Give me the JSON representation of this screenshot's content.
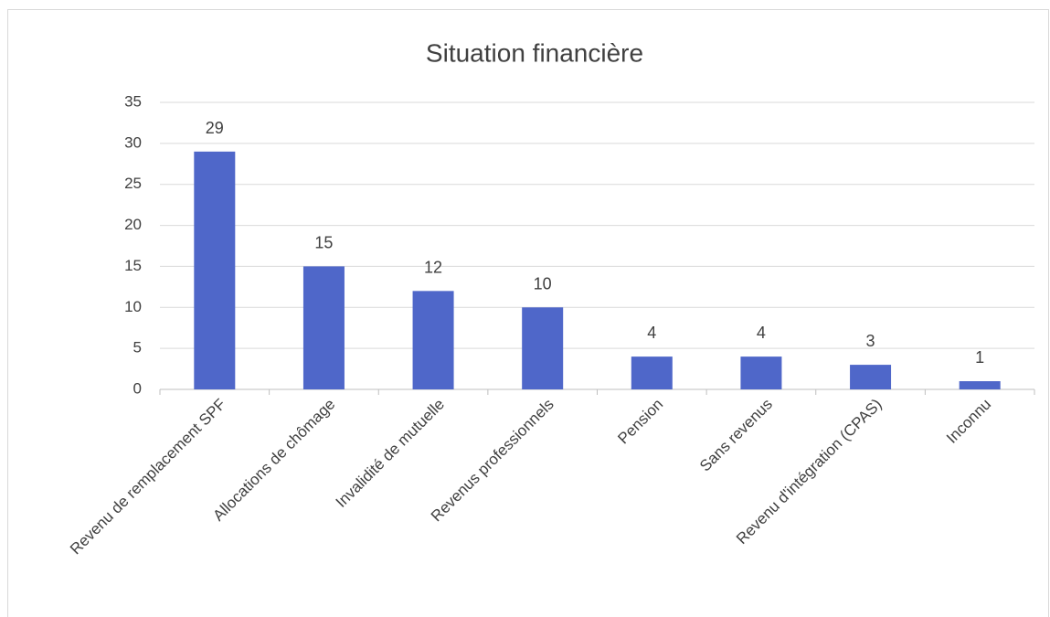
{
  "chart_data": {
    "type": "bar",
    "title": "Situation financière",
    "categories": [
      "Revenu de remplacement SPF",
      "Allocations de chômage",
      "Invalidité de mutuelle",
      "Revenus professionnels",
      "Pension",
      "Sans revenus",
      "Revenu d'intégration (CPAS)",
      "Inconnu"
    ],
    "values": [
      29,
      15,
      12,
      10,
      4,
      4,
      3,
      1
    ],
    "color": "#4f67c9",
    "ylim": [
      0,
      35
    ],
    "yticks": [
      0,
      5,
      10,
      15,
      20,
      25,
      30,
      35
    ],
    "grid": true,
    "data_labels": true
  }
}
